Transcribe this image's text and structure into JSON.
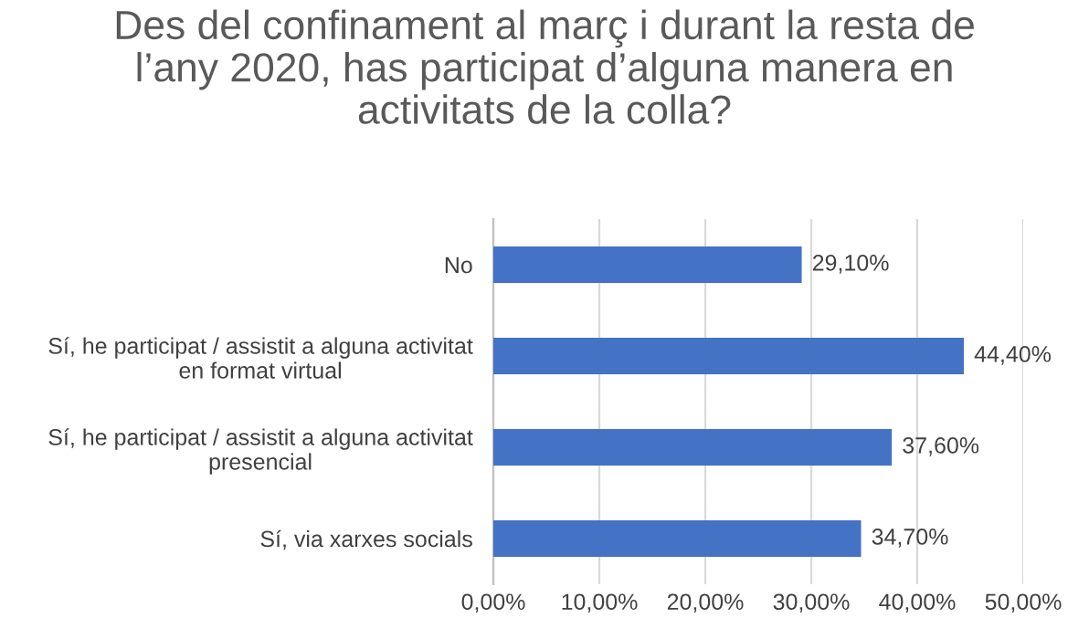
{
  "chart_data": {
    "type": "bar",
    "orientation": "horizontal",
    "title": "Des del confinament al març i durant la resta de\nl’any 2020, has participat d’alguna manera en\nactivitats de la colla?",
    "categories": [
      "No",
      "Sí, he participat / assistit a alguna activitat\nen format virtual",
      "Sí, he participat / assistit a alguna activitat\npresencial",
      "Sí, via xarxes socials"
    ],
    "values": [
      29.1,
      44.4,
      37.6,
      34.7
    ],
    "value_labels": [
      "29,10%",
      "44,40%",
      "37,60%",
      "34,70%"
    ],
    "color": "#4472c4",
    "xlim": [
      0,
      50
    ],
    "xticks": [
      {
        "value": 0,
        "label": "0,00%"
      },
      {
        "value": 10,
        "label": "10,00%"
      },
      {
        "value": 20,
        "label": "20,00%"
      },
      {
        "value": 30,
        "label": "30,00%"
      },
      {
        "value": 40,
        "label": "40,00%"
      },
      {
        "value": 50,
        "label": "50,00%"
      }
    ],
    "grid": "x",
    "legend": false
  }
}
